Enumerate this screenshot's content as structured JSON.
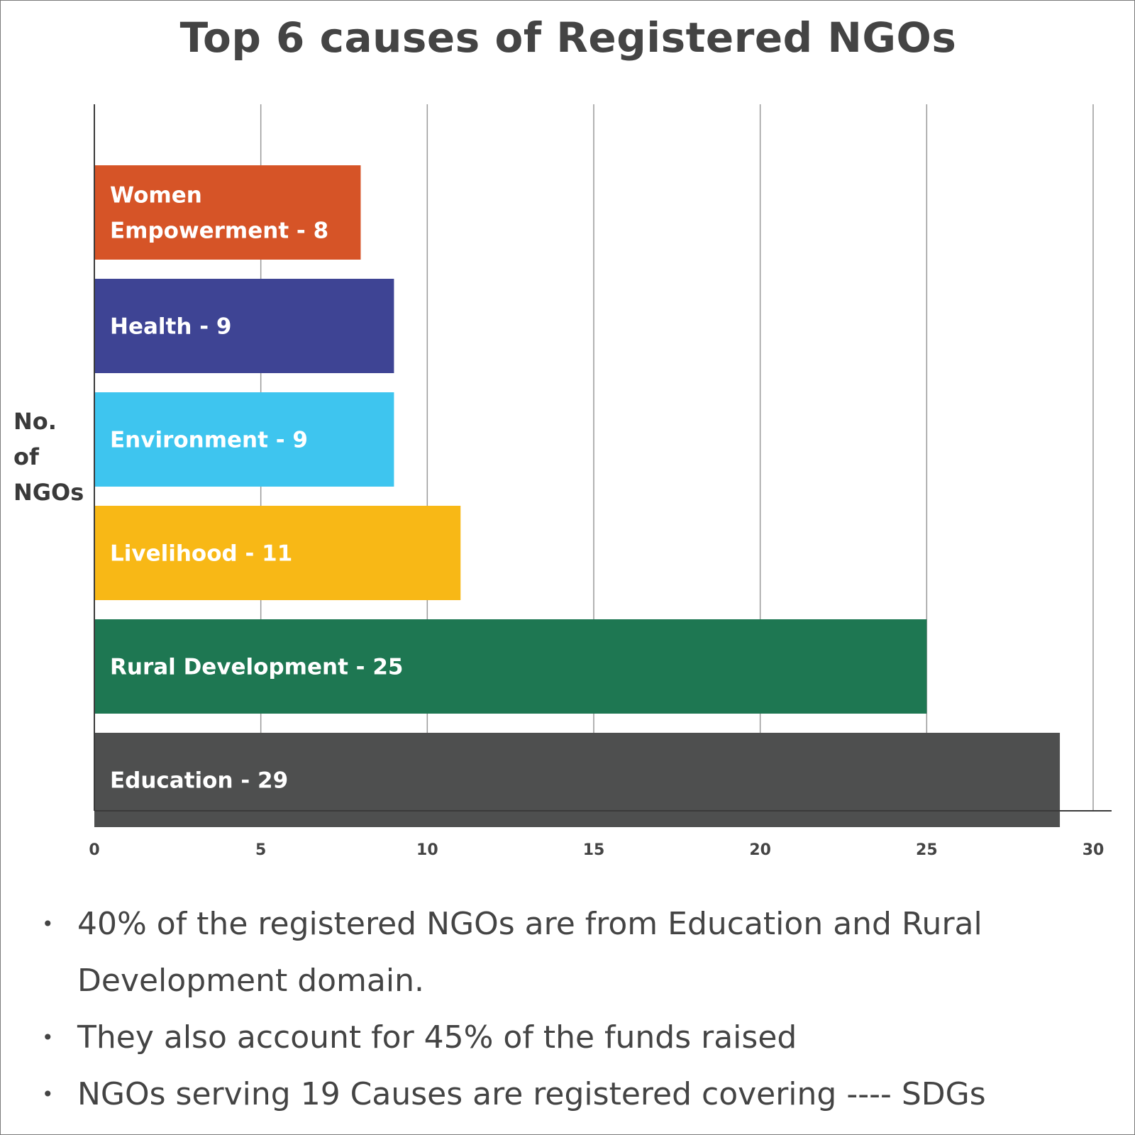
{
  "chart_data": {
    "type": "bar",
    "orientation": "horizontal",
    "title": "Top 6 causes of Registered NGOs",
    "ylabel_lines": [
      "No.",
      "of",
      "NGOs"
    ],
    "categories": [
      "Women Empowerment",
      "Health",
      "Environment",
      "Livelihood",
      "Rural Development",
      "Education"
    ],
    "values": [
      8,
      9,
      9,
      11,
      25,
      29
    ],
    "bar_labels": [
      [
        "Women",
        "Empowerment - 8"
      ],
      [
        "Health - 9"
      ],
      [
        "Environment - 9"
      ],
      [
        "Livelihood - 11"
      ],
      [
        "Rural Development - 25"
      ],
      [
        "Education - 29"
      ]
    ],
    "colors": [
      "#d65427",
      "#3e4494",
      "#3ec5ef",
      "#f8b816",
      "#1e7752",
      "#4e4f4f"
    ],
    "xlim": [
      0,
      30
    ],
    "xticks": [
      0,
      5,
      10,
      15,
      20,
      25,
      30
    ],
    "grid": "vertical"
  },
  "notes": [
    "40% of the registered NGOs are from Education and Rural Development domain.",
    "They also account for 45% of the funds raised",
    "NGOs serving 19 Causes are registered covering ---- SDGs"
  ],
  "bullet_glyph": "•"
}
